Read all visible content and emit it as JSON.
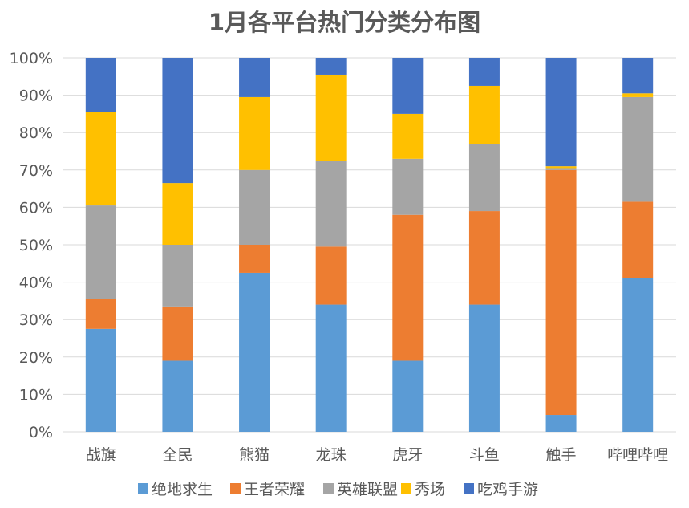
{
  "chart_data": {
    "type": "bar",
    "stacked": "percent",
    "title": "1月各平台热门分类分布图",
    "categories": [
      "战旗",
      "全民",
      "熊猫",
      "龙珠",
      "虎牙",
      "斗鱼",
      "触手",
      "哔哩哔哩"
    ],
    "yticks": [
      "0%",
      "10%",
      "20%",
      "30%",
      "40%",
      "50%",
      "60%",
      "70%",
      "80%",
      "90%",
      "100%"
    ],
    "ylim": [
      0,
      100
    ],
    "grid": true,
    "legend_position": "bottom",
    "series": [
      {
        "name": "绝地求生",
        "color": "#5B9BD5",
        "values": [
          27.5,
          19,
          42.5,
          34,
          19,
          34,
          4.5,
          41
        ]
      },
      {
        "name": "王者荣耀",
        "color": "#ED7D31",
        "values": [
          8,
          14.5,
          7.5,
          15.5,
          39,
          25,
          65.5,
          20.5
        ]
      },
      {
        "name": "英雄联盟",
        "color": "#A5A5A5",
        "values": [
          25,
          16.5,
          20,
          23,
          15,
          18,
          0.5,
          28
        ]
      },
      {
        "name": "秀场",
        "color": "#FFC000",
        "values": [
          25,
          16.5,
          19.5,
          23,
          12,
          15.5,
          0.5,
          1
        ]
      },
      {
        "name": "吃鸡手游",
        "color": "#4472C4",
        "values": [
          14.5,
          33.5,
          10.5,
          4.5,
          15,
          7.5,
          29,
          9.5
        ]
      }
    ]
  }
}
